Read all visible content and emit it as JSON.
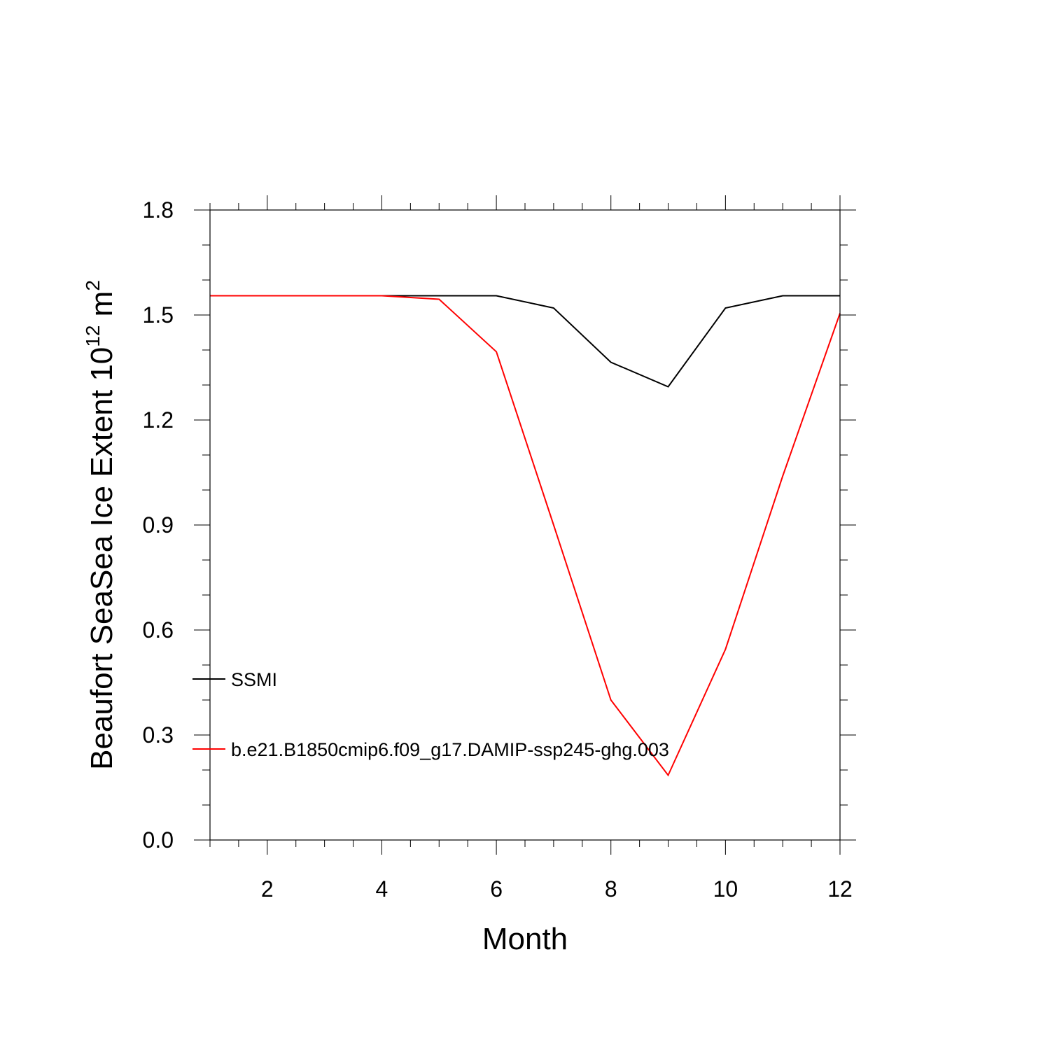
{
  "chart_data": {
    "type": "line",
    "title": "",
    "xlabel": "Month",
    "ylabel_main": "Beaufort SeaSea Ice Extent 10",
    "ylabel_sup": "12",
    "ylabel_unit": " m",
    "ylabel_unit_sup": "2",
    "xlim": [
      1,
      12
    ],
    "ylim": [
      0.0,
      1.8
    ],
    "x_ticks": [
      2,
      4,
      6,
      8,
      10,
      12
    ],
    "x_tick_labels": [
      "2",
      "4",
      "6",
      "8",
      "10",
      "12"
    ],
    "y_ticks": [
      0.0,
      0.3,
      0.6,
      0.9,
      1.2,
      1.5,
      1.8
    ],
    "y_tick_labels": [
      "0.0",
      "0.3",
      "0.6",
      "0.9",
      "1.2",
      "1.5",
      "1.8"
    ],
    "grid": false,
    "legend_position": "left, inside plot",
    "x": [
      1,
      2,
      3,
      4,
      5,
      6,
      7,
      8,
      9,
      10,
      11,
      12
    ],
    "series": [
      {
        "name": "SSMI",
        "color": "#000000",
        "values": [
          1.555,
          1.555,
          1.555,
          1.555,
          1.555,
          1.555,
          1.52,
          1.365,
          1.295,
          1.52,
          1.555,
          1.555
        ]
      },
      {
        "name": "b.e21.B1850cmip6.f09_g17.DAMIP-ssp245-ghg.003",
        "color": "#ff0000",
        "values": [
          1.555,
          1.555,
          1.555,
          1.555,
          1.545,
          1.395,
          0.9,
          0.4,
          0.185,
          0.545,
          1.04,
          1.505
        ]
      }
    ]
  }
}
